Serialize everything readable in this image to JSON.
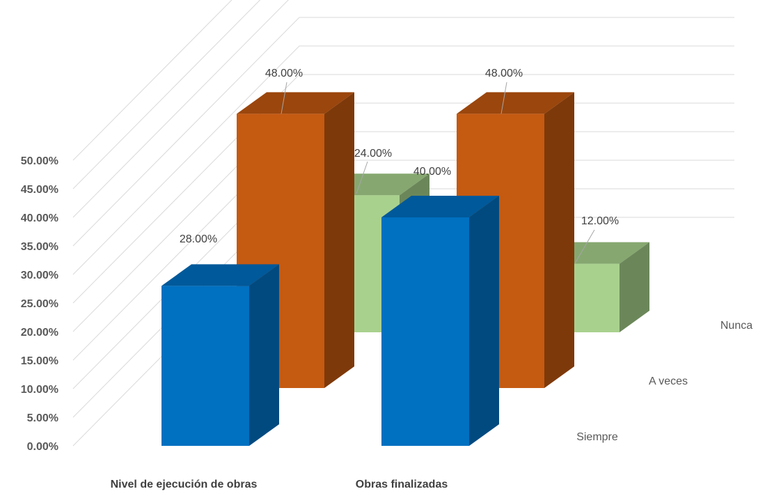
{
  "chart_data": {
    "type": "bar",
    "title": "",
    "categories": [
      "Nivel de ejecución de obras",
      "Obras finalizadas"
    ],
    "series": [
      {
        "name": "Siempre",
        "values": [
          28.0,
          40.0
        ],
        "labels": [
          "28.00%",
          "40.00%"
        ]
      },
      {
        "name": "A veces",
        "values": [
          48.0,
          48.0
        ],
        "labels": [
          "48.00%",
          "48.00%"
        ]
      },
      {
        "name": "Nunca",
        "values": [
          24.0,
          12.0
        ],
        "labels": [
          "24.00%",
          "12.00%"
        ]
      }
    ],
    "ylim": [
      0,
      50
    ],
    "yticks": [
      "0.00%",
      "5.00%",
      "10.00%",
      "15.00%",
      "20.00%",
      "25.00%",
      "30.00%",
      "35.00%",
      "40.00%",
      "45.00%",
      "50.00%"
    ],
    "grid": true,
    "style": "3d-column",
    "colors": {
      "Siempre": {
        "front": "#0070c0",
        "top": "#00599a",
        "side": "#004a80"
      },
      "A veces": {
        "front": "#c55a11",
        "top": "#9b460c",
        "side": "#7e390a"
      },
      "Nunca": {
        "front": "#a9d18e",
        "top": "#86a870",
        "side": "#6b875a"
      }
    }
  }
}
